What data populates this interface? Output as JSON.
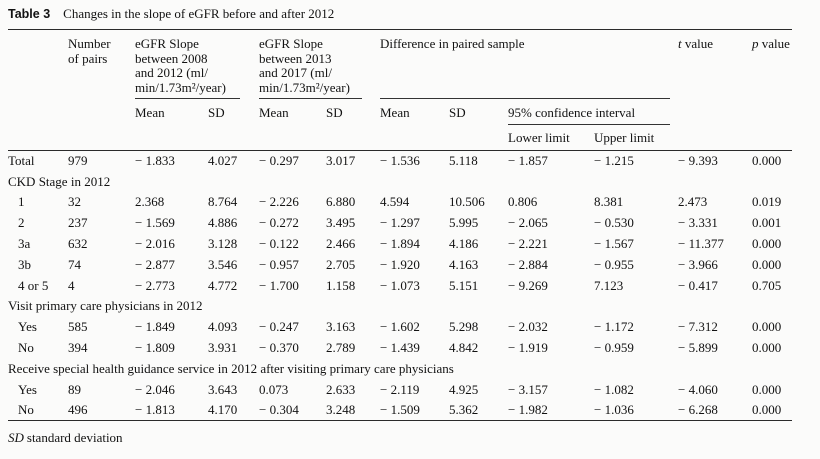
{
  "caption": {
    "label": "Table 3",
    "text": "Changes in the slope of eGFR before and after 2012"
  },
  "header": {
    "number_of_pairs": "Number\nof pairs",
    "slope_2008_2012": "eGFR Slope\nbetween 2008\nand 2012 (ml/\nmin/1.73m²/year)",
    "slope_2013_2017": "eGFR Slope\nbetween 2013\nand 2017 (ml/\nmin/1.73m²/year)",
    "difference": "Difference in paired sample",
    "ci": "95% confidence interval",
    "mean": "Mean",
    "sd": "SD",
    "lower": "Lower limit",
    "upper": "Upper limit",
    "t_symbol": "t",
    "p_symbol": "p",
    "value_word": "value"
  },
  "rows": [
    {
      "type": "data",
      "label": "Total",
      "indent": false,
      "values": [
        "979",
        "− 1.833",
        "4.027",
        "− 0.297",
        "3.017",
        "− 1.536",
        "5.118",
        "− 1.857",
        "− 1.215",
        "− 9.393",
        "0.000"
      ]
    },
    {
      "type": "section",
      "label": "CKD Stage in 2012"
    },
    {
      "type": "data",
      "label": "1",
      "indent": true,
      "values": [
        "32",
        "2.368",
        "8.764",
        "− 2.226",
        "6.880",
        "4.594",
        "10.506",
        "0.806",
        "8.381",
        "2.473",
        "0.019"
      ]
    },
    {
      "type": "data",
      "label": "2",
      "indent": true,
      "values": [
        "237",
        "− 1.569",
        "4.886",
        "− 0.272",
        "3.495",
        "− 1.297",
        "5.995",
        "− 2.065",
        "− 0.530",
        "− 3.331",
        "0.001"
      ]
    },
    {
      "type": "data",
      "label": "3a",
      "indent": true,
      "values": [
        "632",
        "− 2.016",
        "3.128",
        "− 0.122",
        "2.466",
        "− 1.894",
        "4.186",
        "− 2.221",
        "− 1.567",
        "− 11.377",
        "0.000"
      ]
    },
    {
      "type": "data",
      "label": "3b",
      "indent": true,
      "values": [
        "74",
        "− 2.877",
        "3.546",
        "− 0.957",
        "2.705",
        "− 1.920",
        "4.163",
        "− 2.884",
        "− 0.955",
        "− 3.966",
        "0.000"
      ]
    },
    {
      "type": "data",
      "label": "4 or 5",
      "indent": true,
      "values": [
        "4",
        "− 2.773",
        "4.772",
        "− 1.700",
        "1.158",
        "− 1.073",
        "5.151",
        "− 9.269",
        "7.123",
        "− 0.417",
        "0.705"
      ]
    },
    {
      "type": "section",
      "label": "Visit primary care physicians in 2012"
    },
    {
      "type": "data",
      "label": "Yes",
      "indent": true,
      "values": [
        "585",
        "− 1.849",
        "4.093",
        "− 0.247",
        "3.163",
        "− 1.602",
        "5.298",
        "− 2.032",
        "− 1.172",
        "− 7.312",
        "0.000"
      ]
    },
    {
      "type": "data",
      "label": "No",
      "indent": true,
      "values": [
        "394",
        "− 1.809",
        "3.931",
        "− 0.370",
        "2.789",
        "− 1.439",
        "4.842",
        "− 1.919",
        "− 0.959",
        "− 5.899",
        "0.000"
      ]
    },
    {
      "type": "section",
      "label": "Receive special health guidance service in 2012 after visiting primary care physicians"
    },
    {
      "type": "data",
      "label": "Yes",
      "indent": true,
      "values": [
        "89",
        "− 2.046",
        "3.643",
        "0.073",
        "2.633",
        "− 2.119",
        "4.925",
        "− 3.157",
        "− 1.082",
        "− 4.060",
        "0.000"
      ]
    },
    {
      "type": "data",
      "label": "No",
      "indent": true,
      "values": [
        "496",
        "− 1.813",
        "4.170",
        "− 0.304",
        "3.248",
        "− 1.509",
        "5.362",
        "− 1.982",
        "− 1.036",
        "− 6.268",
        "0.000"
      ]
    }
  ],
  "footnote": {
    "abbr": "SD",
    "text": "standard deviation"
  }
}
